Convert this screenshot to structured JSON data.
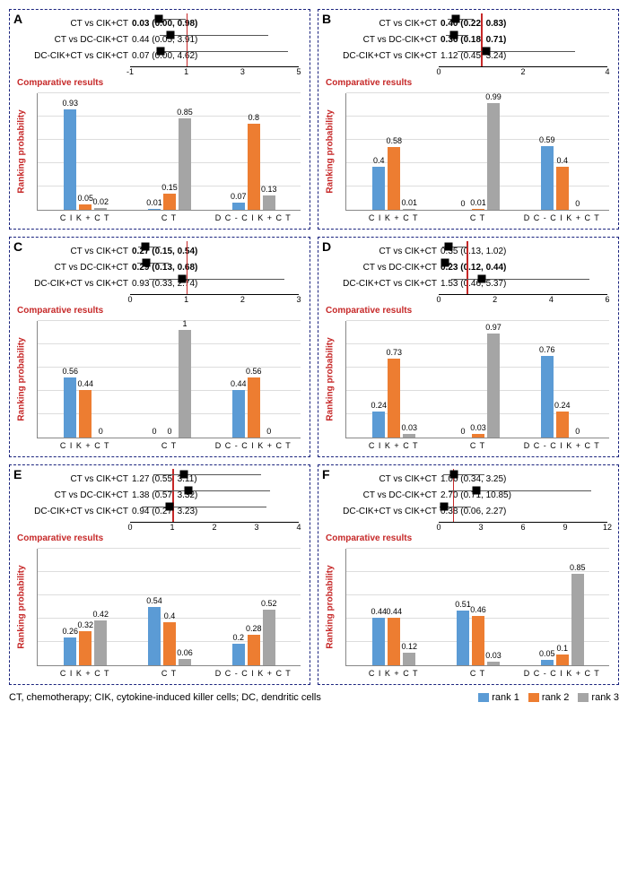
{
  "colors": {
    "rank1": "#5b9bd5",
    "rank2": "#ed7d31",
    "rank3": "#a5a5a5",
    "ref": "#c62828",
    "border": "#1a237e"
  },
  "footer_text": "CT, chemotherapy; CIK, cytokine-induced killer cells; DC, dendritic cells",
  "legend": [
    "rank 1",
    "rank 2",
    "rank 3"
  ],
  "ylabel": "Ranking probability",
  "comp_label": "Comparative results",
  "categories": [
    "C I K + C T",
    "C T",
    "D C - C I K + C T"
  ],
  "panels": [
    {
      "id": "A",
      "forest": {
        "xmin": -1,
        "xmax": 5,
        "ref": 1,
        "ticks": [
          -1,
          1,
          3,
          5
        ],
        "rows": [
          {
            "label": "CT vs CIK+CT",
            "val": "0.03 (0.00, 0.98)",
            "bold": true,
            "pt": 0.03,
            "lo": 0.0,
            "hi": 0.98
          },
          {
            "label": "CT vs DC-CIK+CT",
            "val": "0.44 (0.05, 3.91)",
            "bold": false,
            "pt": 0.44,
            "lo": 0.05,
            "hi": 3.91
          },
          {
            "label": "DC-CIK+CT vs CIK+CT",
            "val": "0.07 (0.00, 4.62)",
            "bold": false,
            "pt": 0.07,
            "lo": 0.0,
            "hi": 4.62
          }
        ]
      },
      "bars": [
        [
          0.93,
          0.05,
          0.02
        ],
        [
          0.01,
          0.15,
          0.85
        ],
        [
          0.07,
          0.8,
          0.13
        ]
      ]
    },
    {
      "id": "B",
      "forest": {
        "xmin": 0,
        "xmax": 4,
        "ref": 1,
        "ticks": [
          0,
          2,
          4
        ],
        "rows": [
          {
            "label": "CT vs CIK+CT",
            "val": "0.40 (0.22, 0.83)",
            "bold": true,
            "pt": 0.4,
            "lo": 0.22,
            "hi": 0.83
          },
          {
            "label": "CT vs DC-CIK+CT",
            "val": "0.36 (0.18, 0.71)",
            "bold": true,
            "pt": 0.36,
            "lo": 0.18,
            "hi": 0.71
          },
          {
            "label": "DC-CIK+CT vs CIK+CT",
            "val": "1.12 (0.45, 3.24)",
            "bold": false,
            "pt": 1.12,
            "lo": 0.45,
            "hi": 3.24
          }
        ]
      },
      "bars": [
        [
          0.4,
          0.58,
          0.01
        ],
        [
          0.0,
          0.01,
          0.99
        ],
        [
          0.59,
          0.4,
          0.0
        ]
      ]
    },
    {
      "id": "C",
      "forest": {
        "xmin": 0,
        "xmax": 3,
        "ref": 1,
        "ticks": [
          0,
          1,
          2,
          3
        ],
        "rows": [
          {
            "label": "CT vs CIK+CT",
            "val": "0.27 (0.15, 0.54)",
            "bold": true,
            "pt": 0.27,
            "lo": 0.15,
            "hi": 0.54
          },
          {
            "label": "CT vs DC-CIK+CT",
            "val": "0.29 (0.13, 0.68)",
            "bold": true,
            "pt": 0.29,
            "lo": 0.13,
            "hi": 0.68
          },
          {
            "label": "DC-CIK+CT vs CIK+CT",
            "val": "0.93 (0.33, 2.74)",
            "bold": false,
            "pt": 0.93,
            "lo": 0.33,
            "hi": 2.74
          }
        ]
      },
      "bars": [
        [
          0.56,
          0.44,
          0.0
        ],
        [
          0.0,
          0.0,
          1.0
        ],
        [
          0.44,
          0.56,
          0.0
        ]
      ]
    },
    {
      "id": "D",
      "forest": {
        "xmin": 0,
        "xmax": 6,
        "ref": 1,
        "ticks": [
          0,
          2,
          4,
          6
        ],
        "rows": [
          {
            "label": "CT vs CIK+CT",
            "val": "0.35 (0.13, 1.02)",
            "bold": false,
            "pt": 0.35,
            "lo": 0.13,
            "hi": 1.02
          },
          {
            "label": "CT vs DC-CIK+CT",
            "val": "0.23 (0.12, 0.44)",
            "bold": true,
            "pt": 0.23,
            "lo": 0.12,
            "hi": 0.44
          },
          {
            "label": "DC-CIK+CT vs CIK+CT",
            "val": "1.53 (0.46, 5.37)",
            "bold": false,
            "pt": 1.53,
            "lo": 0.46,
            "hi": 5.37
          }
        ]
      },
      "bars": [
        [
          0.24,
          0.73,
          0.03
        ],
        [
          0.0,
          0.03,
          0.97
        ],
        [
          0.76,
          0.24,
          0.0
        ]
      ]
    },
    {
      "id": "E",
      "forest": {
        "xmin": 0,
        "xmax": 4,
        "ref": 1,
        "ticks": [
          0,
          1,
          2,
          3,
          4
        ],
        "rows": [
          {
            "label": "CT vs CIK+CT",
            "val": "1.27 (0.55, 3.11)",
            "bold": false,
            "pt": 1.27,
            "lo": 0.55,
            "hi": 3.11
          },
          {
            "label": "CT vs DC-CIK+CT",
            "val": "1.38 (0.57, 3.32)",
            "bold": false,
            "pt": 1.38,
            "lo": 0.57,
            "hi": 3.32
          },
          {
            "label": "DC-CIK+CT vs CIK+CT",
            "val": "0.94 (0.27, 3.23)",
            "bold": false,
            "pt": 0.94,
            "lo": 0.27,
            "hi": 3.23
          }
        ]
      },
      "bars": [
        [
          0.26,
          0.32,
          0.42
        ],
        [
          0.54,
          0.4,
          0.06
        ],
        [
          0.2,
          0.28,
          0.52
        ]
      ]
    },
    {
      "id": "F",
      "forest": {
        "xmin": 0,
        "xmax": 12,
        "ref": 1,
        "ticks": [
          0,
          3,
          6,
          9,
          12
        ],
        "rows": [
          {
            "label": "CT vs CIK+CT",
            "val": "1.06 (0.34, 3.25)",
            "bold": false,
            "pt": 1.06,
            "lo": 0.34,
            "hi": 3.25
          },
          {
            "label": "CT vs DC-CIK+CT",
            "val": "2.70 (0.71, 10.85)",
            "bold": false,
            "pt": 2.7,
            "lo": 0.71,
            "hi": 10.85
          },
          {
            "label": "DC-CIK+CT vs CIK+CT",
            "val": "0.38 (0.06, 2.27)",
            "bold": false,
            "pt": 0.38,
            "lo": 0.06,
            "hi": 2.27
          }
        ]
      },
      "bars": [
        [
          0.44,
          0.44,
          0.12
        ],
        [
          0.51,
          0.46,
          0.03
        ],
        [
          0.05,
          0.1,
          0.85
        ]
      ]
    }
  ]
}
